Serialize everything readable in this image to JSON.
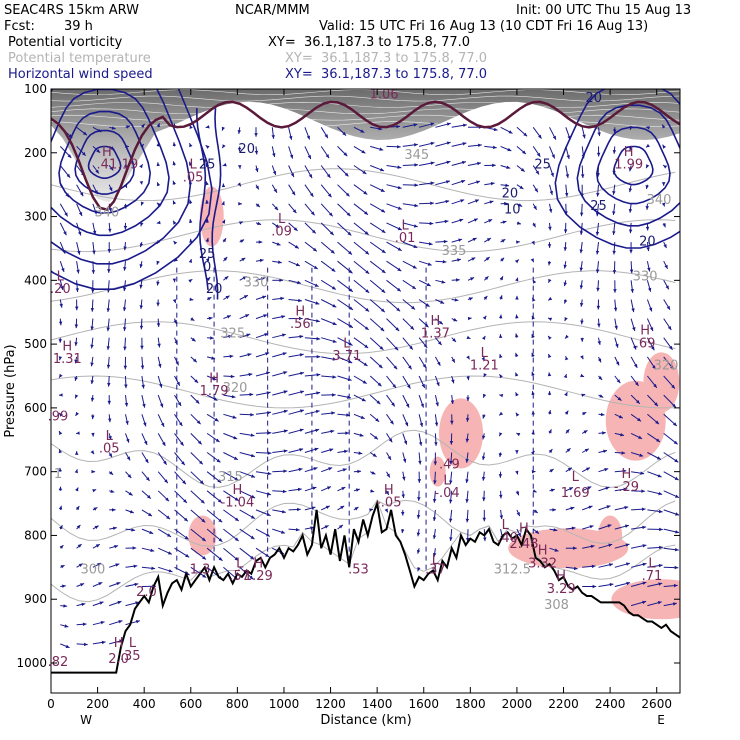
{
  "header": {
    "model": "SEAC4RS 15km ARW",
    "org": "NCAR/MMM",
    "init": "Init: 00 UTC Thu 15 Aug 13",
    "fcst_label": "Fcst:",
    "fcst_value": "39 h",
    "valid": "Valid: 15 UTC Fri 16 Aug 13 (10 CDT Fri 16 Aug 13)"
  },
  "fields": [
    {
      "name": "Potential vorticity",
      "xy": "XY=  36.1,187.3 to 175.8, 77.0",
      "color": "#000000"
    },
    {
      "name": "Potential temperature",
      "xy": "XY=  36.1,187.3 to 175.8, 77.0",
      "color": "#b4b4b4"
    },
    {
      "name": "Horizontal wind speed",
      "xy": "XY=  36.1,187.3 to 175.8, 77.0",
      "color": "#1a1a8c"
    }
  ],
  "colors": {
    "pv_contour": "#5a1a3a",
    "theta_contour": "#b4b4b4",
    "wind_contour": "#1a1a8c",
    "vectors": "#1a1a8c",
    "pink_fill": "#f7b4b4",
    "terrain": "#000000"
  },
  "chart_data": {
    "type": "cross-section",
    "xlabel": "Distance (km)",
    "ylabel": "Pressure (hPa)",
    "xlim": [
      0,
      2700
    ],
    "ylim": [
      1050,
      100
    ],
    "xticks": [
      "0",
      "200",
      "400",
      "600",
      "800",
      "1000",
      "1200",
      "1400",
      "1600",
      "1800",
      "2000",
      "2200",
      "2400",
      "2600"
    ],
    "yticks": [
      "100",
      "200",
      "300",
      "400",
      "500",
      "600",
      "700",
      "800",
      "900",
      "1000"
    ],
    "x_endpoints": {
      "left": "W",
      "right": "E"
    },
    "terrain": {
      "x": [
        0,
        50,
        100,
        150,
        200,
        250,
        280,
        300,
        320,
        340,
        360,
        380,
        400,
        420,
        440,
        460,
        480,
        500,
        520,
        540,
        560,
        580,
        600,
        620,
        640,
        660,
        680,
        700,
        720,
        740,
        760,
        780,
        800,
        820,
        840,
        860,
        880,
        900,
        920,
        940,
        960,
        980,
        1000,
        1020,
        1040,
        1060,
        1080,
        1100,
        1120,
        1140,
        1160,
        1180,
        1200,
        1220,
        1240,
        1260,
        1280,
        1300,
        1320,
        1340,
        1360,
        1380,
        1400,
        1420,
        1440,
        1460,
        1480,
        1500,
        1520,
        1540,
        1560,
        1580,
        1600,
        1620,
        1640,
        1660,
        1680,
        1700,
        1720,
        1740,
        1760,
        1780,
        1800,
        1820,
        1840,
        1860,
        1880,
        1900,
        1920,
        1940,
        1960,
        1980,
        2000,
        2020,
        2040,
        2060,
        2080,
        2100,
        2120,
        2140,
        2160,
        2180,
        2200,
        2220,
        2240,
        2260,
        2280,
        2300,
        2320,
        2340,
        2360,
        2380,
        2400,
        2420,
        2440,
        2460,
        2480,
        2500,
        2520,
        2540,
        2560,
        2580,
        2600,
        2620,
        2640,
        2660,
        2680,
        2700
      ],
      "p": [
        1015,
        1015,
        1015,
        1015,
        1015,
        1015,
        1015,
        975,
        950,
        940,
        915,
        905,
        895,
        905,
        880,
        865,
        910,
        890,
        875,
        870,
        885,
        860,
        880,
        870,
        860,
        850,
        870,
        850,
        865,
        870,
        860,
        875,
        860,
        865,
        855,
        860,
        840,
        835,
        850,
        835,
        830,
        820,
        835,
        820,
        825,
        815,
        800,
        830,
        815,
        760,
        820,
        800,
        830,
        790,
        840,
        800,
        850,
        790,
        810,
        775,
        800,
        770,
        750,
        795,
        790,
        760,
        800,
        810,
        830,
        855,
        880,
        865,
        870,
        860,
        855,
        870,
        840,
        850,
        820,
        835,
        800,
        815,
        805,
        810,
        795,
        800,
        790,
        810,
        815,
        800,
        795,
        805,
        800,
        815,
        790,
        800,
        835,
        840,
        850,
        845,
        855,
        870,
        865,
        880,
        885,
        880,
        890,
        895,
        895,
        900,
        905,
        905,
        905,
        905,
        905,
        910,
        920,
        925,
        925,
        930,
        935,
        935,
        940,
        945,
        940,
        950,
        955,
        960
      ]
    },
    "pv_labels": [
      {
        "x": 240,
        "p": 205,
        "text": "H"
      },
      {
        "x": 240,
        "p": 225,
        "text": ".41"
      },
      {
        "x": 330,
        "p": 225,
        "text": ".19"
      },
      {
        "x": 610,
        "p": 225,
        "text": "L"
      },
      {
        "x": 610,
        "p": 245,
        "text": ".05"
      },
      {
        "x": 990,
        "p": 310,
        "text": "L"
      },
      {
        "x": 990,
        "p": 330,
        "text": ".09"
      },
      {
        "x": 1520,
        "p": 320,
        "text": "L"
      },
      {
        "x": 1520,
        "p": 340,
        "text": ".01"
      },
      {
        "x": 2480,
        "p": 205,
        "text": "H"
      },
      {
        "x": 2480,
        "p": 225,
        "text": "1.99"
      },
      {
        "x": 1430,
        "p": 115,
        "text": "1.06"
      },
      {
        "x": 40,
        "p": 400,
        "text": "L"
      },
      {
        "x": 40,
        "p": 420,
        "text": ".20"
      },
      {
        "x": 1070,
        "p": 455,
        "text": "H"
      },
      {
        "x": 1070,
        "p": 475,
        "text": ".56"
      },
      {
        "x": 1650,
        "p": 470,
        "text": "H"
      },
      {
        "x": 1650,
        "p": 490,
        "text": "1.37"
      },
      {
        "x": 2550,
        "p": 485,
        "text": "H"
      },
      {
        "x": 2550,
        "p": 505,
        "text": ".69"
      },
      {
        "x": 1270,
        "p": 505,
        "text": "L"
      },
      {
        "x": 1270,
        "p": 525,
        "text": "3.71"
      },
      {
        "x": 70,
        "p": 510,
        "text": "H"
      },
      {
        "x": 70,
        "p": 530,
        "text": "1.31"
      },
      {
        "x": 1860,
        "p": 520,
        "text": "L"
      },
      {
        "x": 1860,
        "p": 540,
        "text": "1.21"
      },
      {
        "x": 700,
        "p": 560,
        "text": "H"
      },
      {
        "x": 700,
        "p": 580,
        "text": "1.79"
      },
      {
        "x": 30,
        "p": 620,
        "text": ".99"
      },
      {
        "x": 250,
        "p": 650,
        "text": "L"
      },
      {
        "x": 250,
        "p": 670,
        "text": ".05"
      },
      {
        "x": 1700,
        "p": 720,
        "text": "L"
      },
      {
        "x": 1710,
        "p": 695,
        "text": ".49"
      },
      {
        "x": 1700,
        "p": 740,
        "text": "-.04"
      },
      {
        "x": 2250,
        "p": 715,
        "text": "L"
      },
      {
        "x": 2250,
        "p": 740,
        "text": "1.69"
      },
      {
        "x": 2470,
        "p": 710,
        "text": "H"
      },
      {
        "x": 2470,
        "p": 730,
        "text": "-.29"
      },
      {
        "x": 800,
        "p": 735,
        "text": "H"
      },
      {
        "x": 800,
        "p": 755,
        "text": "-1.04"
      },
      {
        "x": 1450,
        "p": 735,
        "text": "H"
      },
      {
        "x": 1450,
        "p": 755,
        "text": "-.05"
      },
      {
        "x": 1950,
        "p": 790,
        "text": "L"
      },
      {
        "x": 1960,
        "p": 810,
        "text": ".40"
      },
      {
        "x": 2030,
        "p": 795,
        "text": "H"
      },
      {
        "x": 2030,
        "p": 820,
        "text": "2.48"
      },
      {
        "x": 2110,
        "p": 830,
        "text": "H"
      },
      {
        "x": 2110,
        "p": 850,
        "text": "3.32"
      },
      {
        "x": 2190,
        "p": 870,
        "text": "H"
      },
      {
        "x": 2190,
        "p": 890,
        "text": "3.29"
      },
      {
        "x": 2580,
        "p": 850,
        "text": "L"
      },
      {
        "x": 2580,
        "p": 870,
        "text": ".71"
      },
      {
        "x": 640,
        "p": 860,
        "text": "1.3"
      },
      {
        "x": 810,
        "p": 850,
        "text": "L"
      },
      {
        "x": 810,
        "p": 870,
        "text": ".57"
      },
      {
        "x": 890,
        "p": 850,
        "text": "H"
      },
      {
        "x": 890,
        "p": 870,
        "text": "1.29"
      },
      {
        "x": 1320,
        "p": 860,
        "text": ".53"
      },
      {
        "x": 1650,
        "p": 845,
        "text": "L"
      },
      {
        "x": 1650,
        "p": 860,
        "text": ".37"
      },
      {
        "x": 410,
        "p": 895,
        "text": "2.0"
      },
      {
        "x": 290,
        "p": 975,
        "text": "H"
      },
      {
        "x": 290,
        "p": 1000,
        "text": "2.0"
      },
      {
        "x": 350,
        "p": 975,
        "text": "L"
      },
      {
        "x": 340,
        "p": 995,
        "text": ".35"
      },
      {
        "x": 30,
        "p": 1005,
        "text": ".82"
      }
    ],
    "wind_labels": [
      {
        "x": 670,
        "p": 225,
        "text": "25"
      },
      {
        "x": 840,
        "p": 200,
        "text": "20"
      },
      {
        "x": 670,
        "p": 365,
        "text": "25"
      },
      {
        "x": 670,
        "p": 385,
        "text": "0"
      },
      {
        "x": 700,
        "p": 420,
        "text": "20"
      },
      {
        "x": 1970,
        "p": 270,
        "text": "20"
      },
      {
        "x": 1980,
        "p": 295,
        "text": "10"
      },
      {
        "x": 2110,
        "p": 225,
        "text": "25"
      },
      {
        "x": 2350,
        "p": 290,
        "text": "25"
      },
      {
        "x": 2560,
        "p": 345,
        "text": "20"
      },
      {
        "x": 2330,
        "p": 120,
        "text": "20"
      }
    ],
    "theta_labels": [
      {
        "x": 1570,
        "p": 210,
        "text": "345"
      },
      {
        "x": 1730,
        "p": 360,
        "text": "335"
      },
      {
        "x": 880,
        "p": 410,
        "text": "330"
      },
      {
        "x": 780,
        "p": 490,
        "text": "325"
      },
      {
        "x": 790,
        "p": 575,
        "text": "320"
      },
      {
        "x": 2550,
        "p": 400,
        "text": "330"
      },
      {
        "x": 2640,
        "p": 540,
        "text": "320"
      },
      {
        "x": 2610,
        "p": 280,
        "text": "340"
      },
      {
        "x": 240,
        "p": 300,
        "text": "340"
      },
      {
        "x": 770,
        "p": 715,
        "text": "315"
      },
      {
        "x": 180,
        "p": 860,
        "text": "300"
      },
      {
        "x": 1980,
        "p": 860,
        "text": "312.5"
      },
      {
        "x": 2170,
        "p": 915,
        "text": "308"
      },
      {
        "x": 30,
        "p": 710,
        "text": "1"
      }
    ]
  }
}
